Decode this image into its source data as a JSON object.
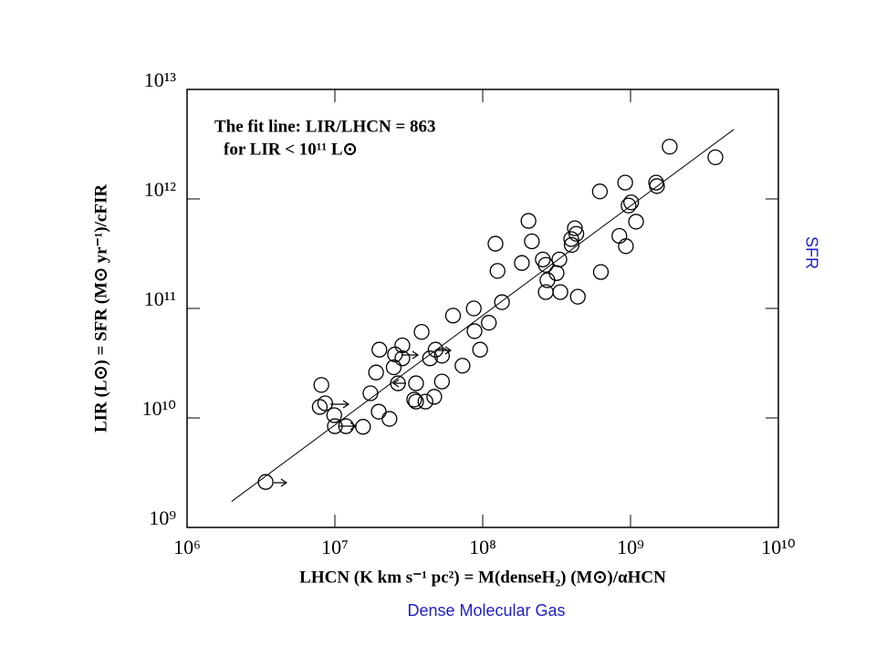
{
  "chart_data": {
    "type": "scatter",
    "x_label": "LHCN (K km s⁻¹ pc²) = M(denseH₂) (M⊙)/αHCN",
    "y_label": "LIR (L⊙) = SFR (M⊙ yr⁻¹)/cFIR",
    "annotations": [
      "The fit line:  LIR/LHCN = 863",
      "for LIR < 10¹¹ L⊙"
    ],
    "side_labels": [
      "SFR",
      "Dense Molecular Gas"
    ],
    "xscale": "log",
    "yscale": "log",
    "xlim": [
      1000000,
      10000000000
    ],
    "ylim": [
      1000000000,
      10000000000000
    ],
    "xticks": [
      {
        "value": 1000000,
        "label": "10⁶"
      },
      {
        "value": 10000000,
        "label": "10⁷"
      },
      {
        "value": 100000000,
        "label": "10⁸"
      },
      {
        "value": 1000000000,
        "label": "10⁹"
      },
      {
        "value": 10000000000,
        "label": "10¹⁰"
      }
    ],
    "yticks": [
      {
        "value": 1000000000,
        "label": "10⁹"
      },
      {
        "value": 10000000000,
        "label": "10¹⁰"
      },
      {
        "value": 100000000000,
        "label": "10¹¹"
      },
      {
        "value": 1000000000000,
        "label": "10¹²"
      },
      {
        "value": 10000000000000,
        "label": "10¹³"
      }
    ],
    "color": "#000000",
    "fit": {
      "x": [
        2000000,
        5000000000
      ],
      "y": [
        1726000000,
        4315000000000
      ]
    },
    "x": [
      3400000,
      8100000,
      7900000,
      8600000,
      9900000,
      10000000,
      11900000,
      15500000,
      17400000,
      19000000,
      19800000,
      20000000,
      23400000,
      25000000,
      25500000,
      26700000,
      28600000,
      28600000,
      34400000,
      35400000,
      38600000,
      35400000,
      41000000,
      44000000,
      47000000,
      48000000,
      53000000,
      53000000,
      63000000,
      73000000,
      87000000,
      88000000,
      96000000,
      110000000,
      122000000,
      126000000,
      135000000,
      184000000,
      204000000,
      215000000,
      255000000,
      267000000,
      267000000,
      274000000,
      316000000,
      330000000,
      335000000,
      397000000,
      400000000,
      420000000,
      430000000,
      440000000,
      620000000,
      630000000,
      840000000,
      920000000,
      930000000,
      970000000,
      1010000000,
      1090000000,
      1490000000,
      1510000000,
      1840000000,
      3750000000
    ],
    "values": [
      2600000000,
      20000000000,
      12600000000,
      13600000000,
      10600000000,
      8400000000,
      8400000000,
      8300000000,
      16800000000,
      26000000000,
      11400000000,
      42000000000,
      9800000000,
      29000000000,
      38000000000,
      20700000000,
      46000000000,
      35000000000,
      14700000000,
      20700000000,
      61000000000,
      14100000000,
      14100000000,
      35000000000,
      15600000000,
      42000000000,
      21500000000,
      37000000000,
      86000000000,
      30000000000,
      100000000000,
      62000000000,
      42000000000,
      74000000000,
      390000000000,
      220000000000,
      114000000000,
      260000000000,
      630000000000,
      410000000000,
      280000000000,
      250000000000,
      141000000000,
      181000000000,
      210000000000,
      280000000000,
      141000000000,
      430000000000,
      380000000000,
      540000000000,
      480000000000,
      128000000000,
      1170000000000,
      215000000000,
      460000000000,
      1410000000000,
      370000000000,
      870000000000,
      930000000000,
      620000000000,
      1410000000000,
      1310000000000,
      3000000000000,
      2400000000000
    ]
  }
}
